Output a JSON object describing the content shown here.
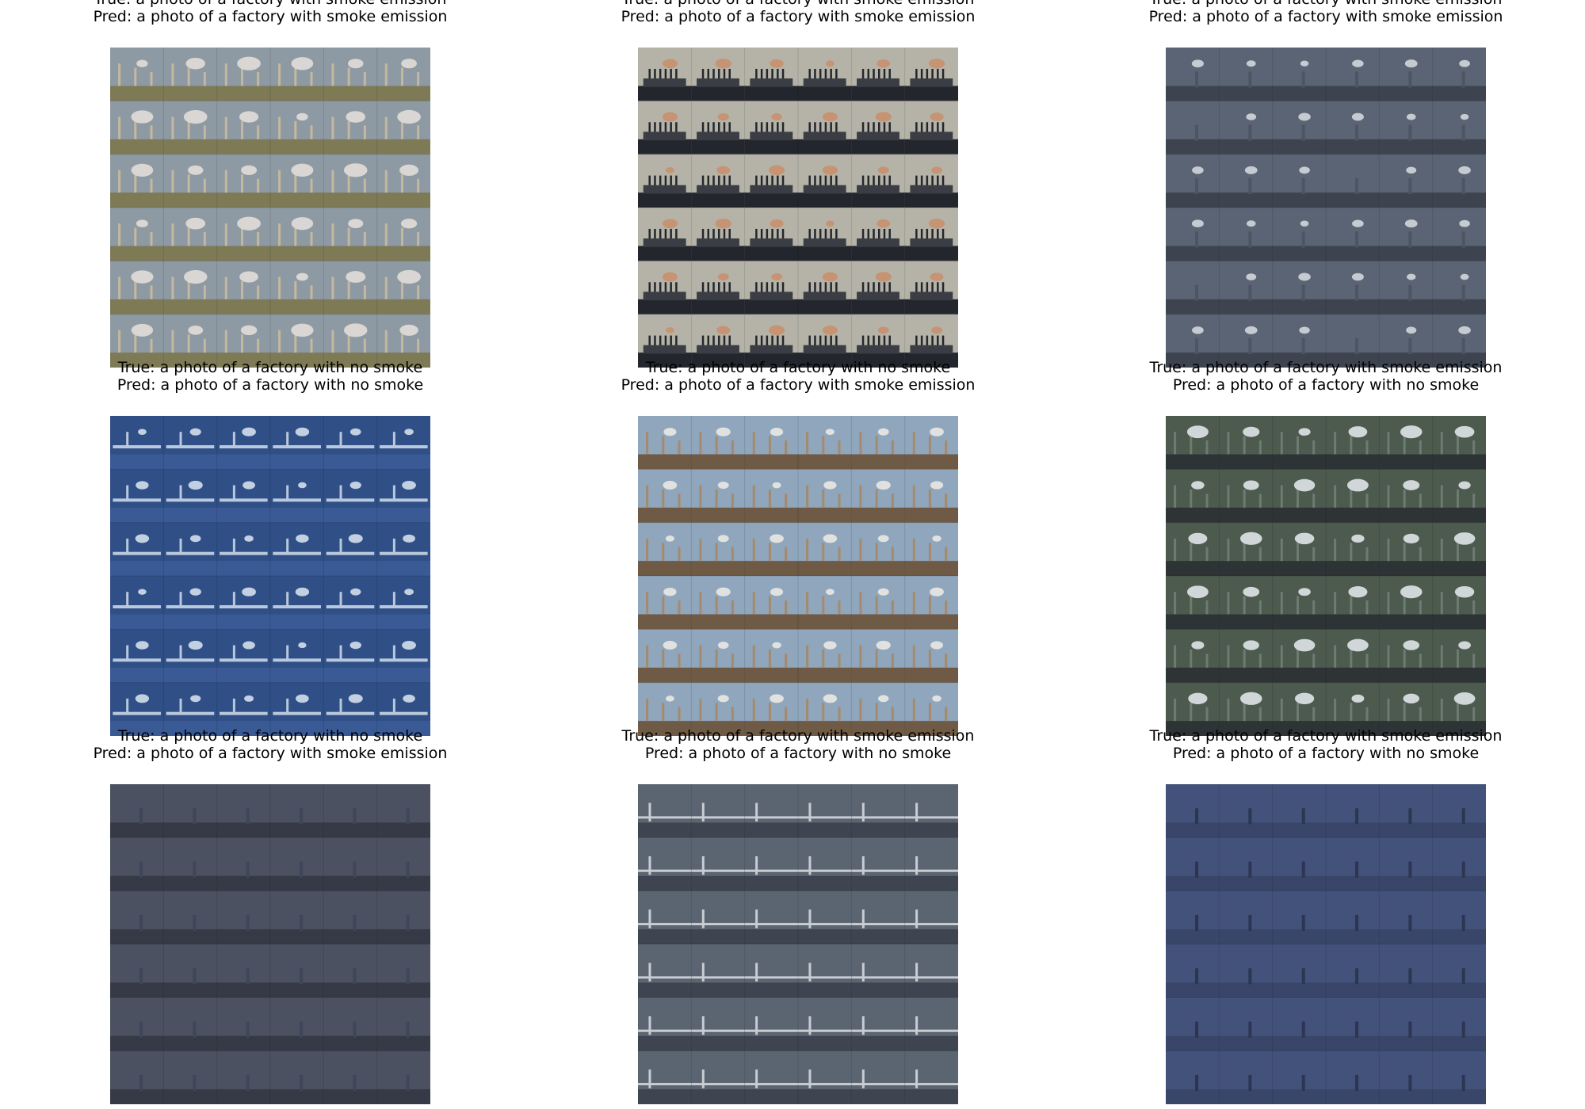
{
  "figure": {
    "grid_rows": 3,
    "grid_cols": 3,
    "frames_per_panel": {
      "rows": 6,
      "cols": 6
    },
    "panels": [
      {
        "true_label": "True: a photo of a factory with smoke emission",
        "pred_label": "Pred: a photo of a factory with smoke emission",
        "scene": {
          "sky": "#8e9aa3",
          "ground": "#7d7a55",
          "accent": "#c4b89e",
          "smoke": "#e6e1dc",
          "smoke_level": 0.55,
          "style": "chimneys"
        }
      },
      {
        "true_label": "True: a photo of a factory with smoke emission",
        "pred_label": "Pred: a photo of a factory with smoke emission",
        "scene": {
          "sky": "#b5b3a8",
          "ground": "#23262c",
          "accent": "#3a3d44",
          "smoke": "#c98e6a",
          "smoke_level": 0.35,
          "style": "silhouette"
        }
      },
      {
        "true_label": "True: a photo of a factory with smoke emission",
        "pred_label": "Pred: a photo of a factory with smoke emission",
        "scene": {
          "sky": "#5a6474",
          "ground": "#3d444f",
          "accent": "#4c5563",
          "smoke": "#d9dde2",
          "smoke_level": 0.25,
          "style": "dusk"
        }
      },
      {
        "true_label": "True: a photo of a factory with no smoke",
        "pred_label": "Pred: a photo of a factory with no smoke",
        "scene": {
          "sky": "#2f4f86",
          "ground": "#3a5a96",
          "accent": "#b9c8dc",
          "smoke": "#dde6f2",
          "smoke_level": 0.3,
          "style": "blue"
        }
      },
      {
        "true_label": "True: a photo of a factory with no smoke",
        "pred_label": "Pred: a photo of a factory with smoke emission",
        "scene": {
          "sky": "#8fa6bd",
          "ground": "#6e5a45",
          "accent": "#a58a6b",
          "smoke": "#f0ece6",
          "smoke_level": 0.3,
          "style": "chimneys"
        }
      },
      {
        "true_label": "True: a photo of a factory with smoke emission",
        "pred_label": "Pred: a photo of a factory with no smoke",
        "scene": {
          "sky": "#4d5a4e",
          "ground": "#2e3436",
          "accent": "#6b7c72",
          "smoke": "#e9ecf2",
          "smoke_level": 0.5,
          "style": "stacks"
        }
      },
      {
        "true_label": "True: a photo of a factory with no smoke",
        "pred_label": "Pred: a photo of a factory with smoke emission",
        "scene": {
          "sky": "#4b5160",
          "ground": "#353a46",
          "accent": "#40465a",
          "smoke": "#e8eaef",
          "smoke_level": 0.1,
          "style": "dusk"
        }
      },
      {
        "true_label": "True: a photo of a factory with smoke emission",
        "pred_label": "Pred: a photo of a factory with no smoke",
        "scene": {
          "sky": "#5b6572",
          "ground": "#3e4550",
          "accent": "#c9ccd1",
          "smoke": "#b0b6be",
          "smoke_level": 0.1,
          "style": "rail"
        }
      },
      {
        "true_label": "True: a photo of a factory with smoke emission",
        "pred_label": "Pred: a photo of a factory with no smoke",
        "scene": {
          "sky": "#43527a",
          "ground": "#39466a",
          "accent": "#2c3652",
          "smoke": "#8796b8",
          "smoke_level": 0.1,
          "style": "dusk"
        }
      }
    ]
  }
}
